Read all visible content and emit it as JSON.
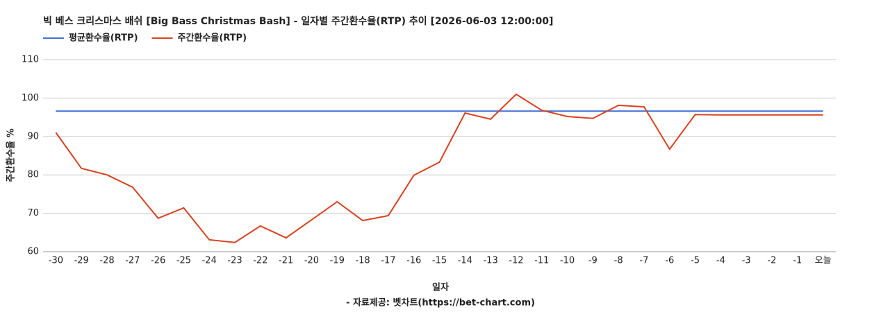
{
  "chart_data": {
    "type": "line",
    "title": "빅 베스 크리스마스 배쉬 [Big Bass Christmas Bash] - 일자별 주간환수율(RTP) 추이 [2026-06-03 12:00:00]",
    "x_label": "일자",
    "y_label": "주간환수율 %",
    "note": "- 자료제공: 벳차트(https://bet-chart.com)",
    "categories": [
      "-30",
      "-29",
      "-28",
      "-27",
      "-26",
      "-25",
      "-24",
      "-23",
      "-22",
      "-21",
      "-20",
      "-19",
      "-18",
      "-17",
      "-16",
      "-15",
      "-14",
      "-13",
      "-12",
      "-11",
      "-10",
      "-9",
      "-8",
      "-7",
      "-6",
      "-5",
      "-4",
      "-3",
      "-2",
      "-1",
      "오늘"
    ],
    "series": [
      {
        "name": "평균환수율(RTP)",
        "color": "#3f6fd8",
        "values": [
          96.6,
          96.6,
          96.6,
          96.6,
          96.6,
          96.6,
          96.6,
          96.6,
          96.6,
          96.6,
          96.6,
          96.6,
          96.6,
          96.6,
          96.6,
          96.6,
          96.6,
          96.6,
          96.6,
          96.6,
          96.6,
          96.6,
          96.6,
          96.6,
          96.6,
          96.6,
          96.6,
          96.6,
          96.6,
          96.6,
          96.6
        ]
      },
      {
        "name": "주간환수율(RTP)",
        "color": "#d9401f",
        "values": [
          91.0,
          81.7,
          80.0,
          76.8,
          68.7,
          71.4,
          63.1,
          62.4,
          66.7,
          63.6,
          68.3,
          73.0,
          68.1,
          69.4,
          79.9,
          83.3,
          96.1,
          94.5,
          101.0,
          96.8,
          95.2,
          94.7,
          98.1,
          97.7,
          86.7,
          95.7,
          95.6,
          95.6,
          95.6,
          95.6,
          95.6
        ]
      }
    ],
    "ylim": [
      60,
      110
    ],
    "yticks": [
      60,
      70,
      80,
      90,
      100,
      110
    ],
    "grid": true
  }
}
